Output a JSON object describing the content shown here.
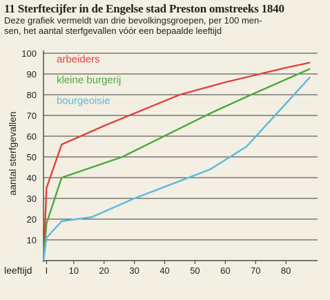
{
  "header": {
    "title": "11 Sterftecijfer in de Engelse stad Preston omstreeks 1840",
    "subtitle_lines": [
      "Deze grafiek vermeldt van drie bevolkingsgroepen, per 100 men-",
      "sen, het aantal sterfgevallen vóór een bepaalde leeftijd"
    ]
  },
  "chart_data": {
    "type": "line",
    "title": "11 Sterftecijfer in de Engelse stad Preston omstreeks 1840",
    "xlabel": "leeftijd",
    "ylabel": "aantal sterfgevallen",
    "xlim": [
      0,
      90
    ],
    "ylim": [
      0,
      100
    ],
    "x_ticks": [
      1,
      10,
      20,
      30,
      40,
      50,
      60,
      70,
      80
    ],
    "x_tick_labels": [
      "I",
      "10",
      "20",
      "30",
      "40",
      "50",
      "60",
      "70",
      "80"
    ],
    "y_ticks": [
      10,
      20,
      30,
      40,
      50,
      60,
      70,
      80,
      90,
      100
    ],
    "grid": "horizontal",
    "legend": "top-left",
    "series": [
      {
        "name": "arbeiders",
        "color": "#e0413f",
        "points": [
          [
            0,
            0
          ],
          [
            1,
            35
          ],
          [
            6,
            56
          ],
          [
            20,
            65
          ],
          [
            45,
            80
          ],
          [
            60,
            86
          ],
          [
            80,
            93
          ],
          [
            88,
            95.5
          ]
        ]
      },
      {
        "name": "kleine burgerij",
        "color": "#4ca83e",
        "points": [
          [
            0,
            0
          ],
          [
            1,
            18
          ],
          [
            6,
            40
          ],
          [
            16,
            45
          ],
          [
            26,
            50
          ],
          [
            55,
            71
          ],
          [
            67,
            79
          ],
          [
            88,
            92.5
          ]
        ]
      },
      {
        "name": "bourgeoisie",
        "color": "#5bb8e0",
        "points": [
          [
            0,
            0
          ],
          [
            1,
            11
          ],
          [
            6,
            19
          ],
          [
            16,
            21
          ],
          [
            30,
            30
          ],
          [
            55,
            44
          ],
          [
            67,
            55
          ],
          [
            88,
            88.5
          ]
        ]
      }
    ]
  }
}
